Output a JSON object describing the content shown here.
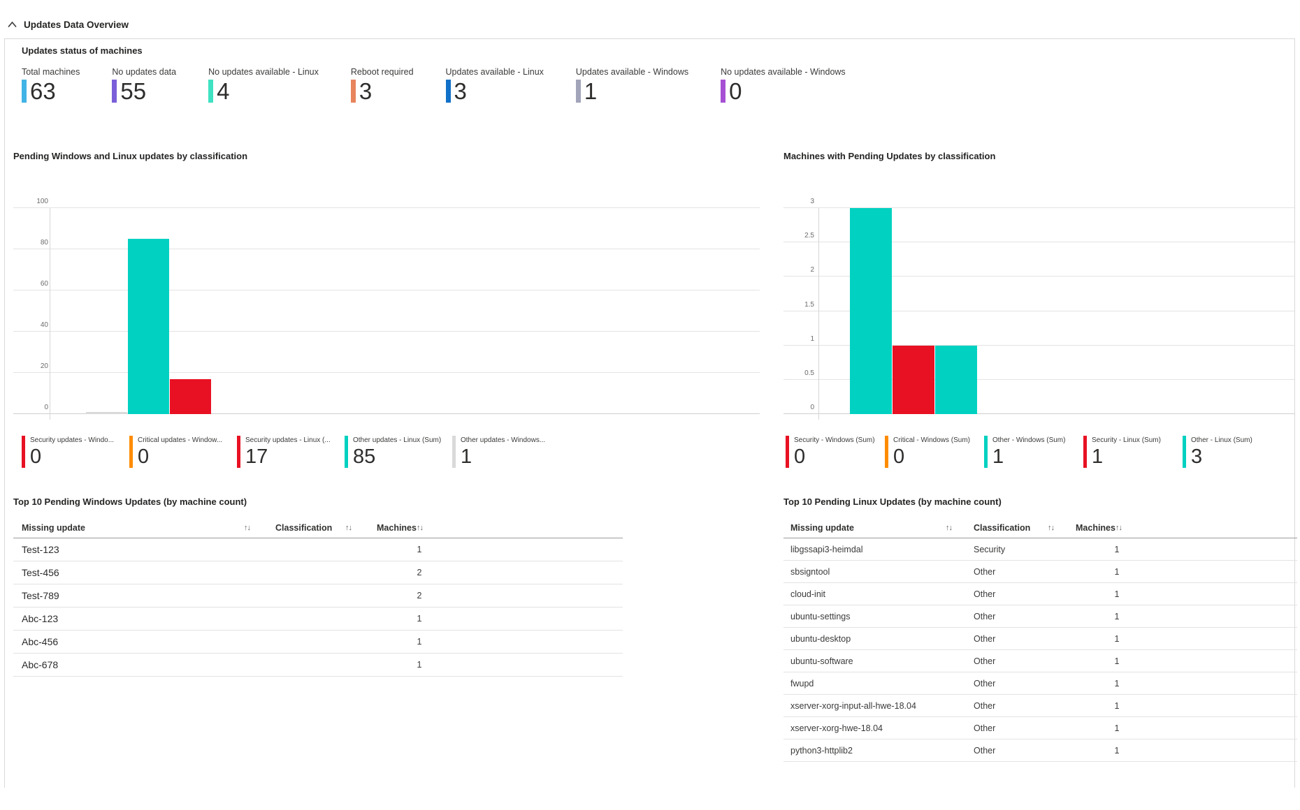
{
  "header": {
    "title": "Updates Data Overview"
  },
  "status_section": {
    "title": "Updates status of machines",
    "tiles": [
      {
        "label": "Total machines",
        "value": "63",
        "color": "#41b4e6"
      },
      {
        "label": "No updates data",
        "value": "55",
        "color": "#7a5fd9"
      },
      {
        "label": "No updates available - Linux",
        "value": "4",
        "color": "#3fe2c2"
      },
      {
        "label": "Reboot required",
        "value": "3",
        "color": "#e8845e"
      },
      {
        "label": "Updates available - Linux",
        "value": "3",
        "color": "#1170c8"
      },
      {
        "label": "Updates available - Windows",
        "value": "1",
        "color": "#a2a4ba"
      },
      {
        "label": "No updates available - Windows",
        "value": "0",
        "color": "#a650d4"
      }
    ]
  },
  "chart_data": [
    {
      "type": "bar",
      "title": "Pending Windows and Linux updates by classification",
      "xlabel": "",
      "ylabel": "",
      "ylim": [
        0,
        100
      ],
      "yticks": [
        "0",
        "20",
        "40",
        "60",
        "80",
        "100"
      ],
      "grid": "horizontal",
      "bars": [
        {
          "name": "Other updates - Windows (Sum)",
          "value": 1,
          "color": "#d9d9d9"
        },
        {
          "name": "Other updates - Linux (Sum)",
          "value": 85,
          "color": "#00d1c1"
        },
        {
          "name": "Security updates - Linux (Sum)",
          "value": 17,
          "color": "#e81123"
        }
      ],
      "legend": [
        {
          "label": "Security updates - Windo...",
          "value": "0",
          "color": "#e81123"
        },
        {
          "label": "Critical updates - Window...",
          "value": "0",
          "color": "#ff8c00"
        },
        {
          "label": "Security updates - Linux (...",
          "value": "17",
          "color": "#e81123"
        },
        {
          "label": "Other updates - Linux (Sum)",
          "value": "85",
          "color": "#00d1c1"
        },
        {
          "label": "Other updates - Windows...",
          "value": "1",
          "color": "#d9d9d9"
        }
      ]
    },
    {
      "type": "bar",
      "title": "Machines with Pending Updates by classification",
      "xlabel": "",
      "ylabel": "",
      "ylim": [
        0,
        3
      ],
      "yticks": [
        "0",
        "0.5",
        "1",
        "1.5",
        "2",
        "2.5",
        "3"
      ],
      "grid": "horizontal",
      "bars": [
        {
          "name": "Other - Linux (Sum)",
          "value": 3,
          "color": "#00d1c1"
        },
        {
          "name": "Security - Linux (Sum)",
          "value": 1,
          "color": "#e81123"
        },
        {
          "name": "Other - Windows (Sum)",
          "value": 1,
          "color": "#00d1c1"
        }
      ],
      "legend": [
        {
          "label": "Security - Windows (Sum)",
          "value": "0",
          "color": "#e81123"
        },
        {
          "label": "Critical - Windows (Sum)",
          "value": "0",
          "color": "#ff8c00"
        },
        {
          "label": "Other - Windows (Sum)",
          "value": "1",
          "color": "#00d1c1"
        },
        {
          "label": "Security - Linux (Sum)",
          "value": "1",
          "color": "#e81123"
        },
        {
          "label": "Other - Linux (Sum)",
          "value": "3",
          "color": "#00d1c1"
        }
      ]
    }
  ],
  "windows_table": {
    "title": "Top 10 Pending Windows Updates (by machine count)",
    "sort_icon": "↑↓",
    "columns": {
      "missing_update": "Missing update",
      "classification": "Classification",
      "machines": "Machines"
    },
    "rows": [
      {
        "missing_update": "Test-123",
        "classification": "",
        "machines": "1"
      },
      {
        "missing_update": "Test-456",
        "classification": "",
        "machines": "2"
      },
      {
        "missing_update": "Test-789",
        "classification": "",
        "machines": "2"
      },
      {
        "missing_update": "Abc-123",
        "classification": "",
        "machines": "1"
      },
      {
        "missing_update": "Abc-456",
        "classification": "",
        "machines": "1"
      },
      {
        "missing_update": "Abc-678",
        "classification": "",
        "machines": "1"
      }
    ]
  },
  "linux_table": {
    "title": "Top 10 Pending Linux Updates (by machine count)",
    "sort_icon": "↑↓",
    "columns": {
      "missing_update": "Missing update",
      "classification": "Classification",
      "machines": "Machines"
    },
    "rows": [
      {
        "missing_update": "libgssapi3-heimdal",
        "classification": "Security",
        "machines": "1"
      },
      {
        "missing_update": "sbsigntool",
        "classification": "Other",
        "machines": "1"
      },
      {
        "missing_update": "cloud-init",
        "classification": "Other",
        "machines": "1"
      },
      {
        "missing_update": "ubuntu-settings",
        "classification": "Other",
        "machines": "1"
      },
      {
        "missing_update": "ubuntu-desktop",
        "classification": "Other",
        "machines": "1"
      },
      {
        "missing_update": "ubuntu-software",
        "classification": "Other",
        "machines": "1"
      },
      {
        "missing_update": "fwupd",
        "classification": "Other",
        "machines": "1"
      },
      {
        "missing_update": "xserver-xorg-input-all-hwe-18.04",
        "classification": "Other",
        "machines": "1"
      },
      {
        "missing_update": "xserver-xorg-hwe-18.04",
        "classification": "Other",
        "machines": "1"
      },
      {
        "missing_update": "python3-httplib2",
        "classification": "Other",
        "machines": "1"
      }
    ]
  }
}
